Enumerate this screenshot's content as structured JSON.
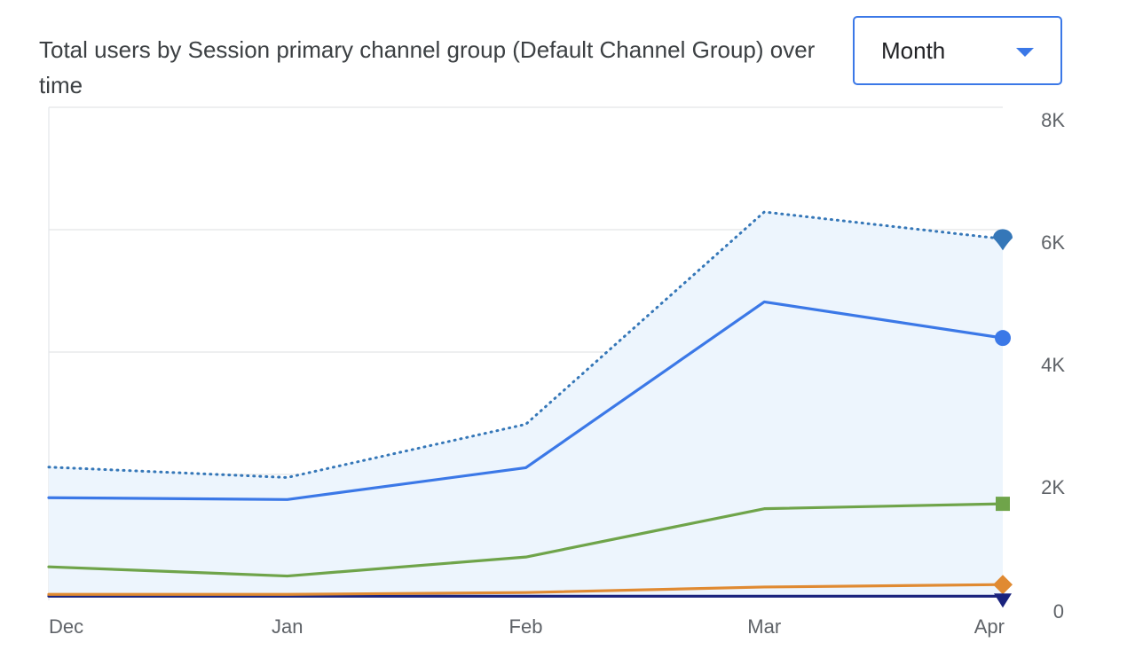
{
  "title": "Total users by Session primary channel group (Default Channel Group) over time",
  "dropdown": {
    "selected": "Month"
  },
  "chart_data": {
    "type": "line",
    "title": "Total users by Session primary channel group (Default Channel Group) over time",
    "x": [
      "Dec",
      "Jan",
      "Feb",
      "Mar",
      "Apr"
    ],
    "ylim": [
      0,
      8000
    ],
    "y_ticks": [
      0,
      2000,
      4000,
      6000,
      8000
    ],
    "y_tick_labels": [
      "0",
      "2K",
      "4K",
      "6K",
      "8K"
    ],
    "y_axis_position": "right",
    "grid": true,
    "area_series": 0,
    "series": [
      {
        "values": [
          2120,
          1950,
          2820,
          6290,
          5850
        ],
        "color": "#3577b8",
        "style": "dotted",
        "marker": "teardrop"
      },
      {
        "values": [
          1620,
          1590,
          2110,
          4820,
          4230
        ],
        "color": "#3b78e7",
        "style": "solid",
        "marker": "circle"
      },
      {
        "values": [
          490,
          340,
          650,
          1440,
          1520
        ],
        "color": "#6fa44a",
        "style": "solid",
        "marker": "square"
      },
      {
        "values": [
          40,
          40,
          70,
          160,
          200
        ],
        "color": "#e08a32",
        "style": "solid",
        "marker": "diamond"
      },
      {
        "values": [
          10,
          10,
          10,
          10,
          10
        ],
        "color": "#1a237e",
        "style": "solid",
        "marker": "triangle-down"
      }
    ],
    "area_fill": "#edf5fd"
  }
}
